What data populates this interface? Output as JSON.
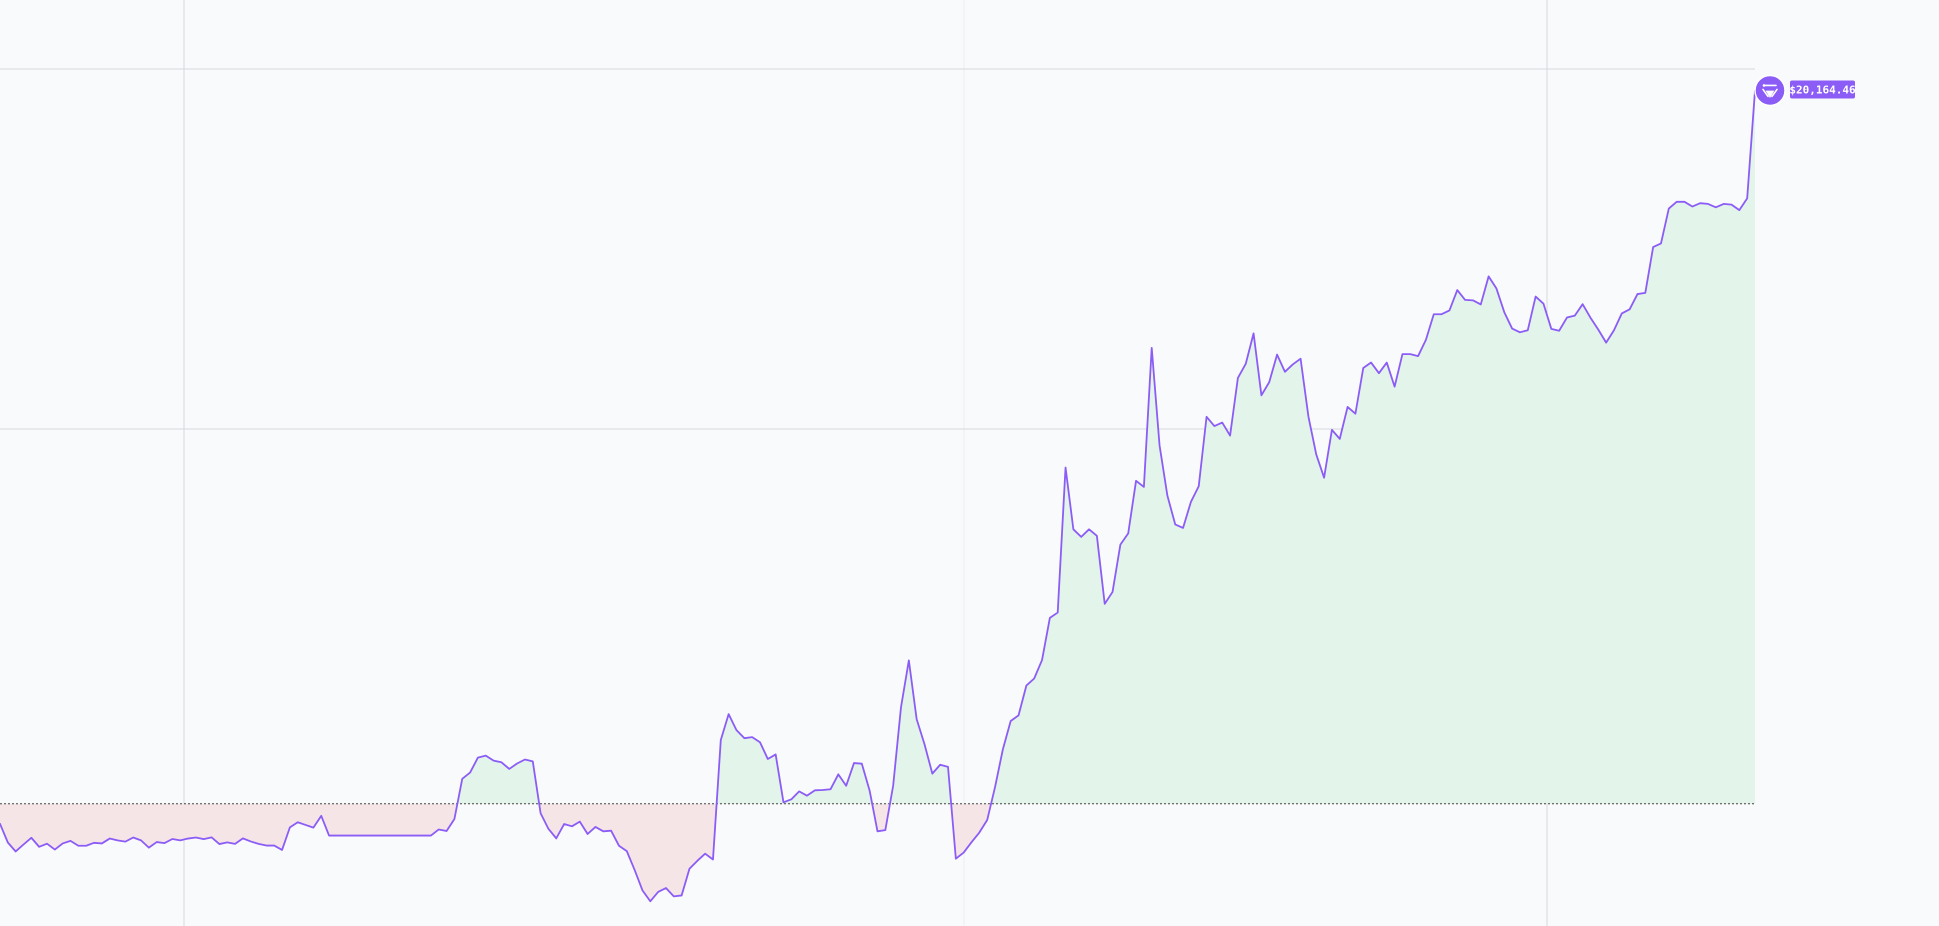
{
  "chart_data": {
    "type": "area",
    "baseline_style": "dotted",
    "grid": true,
    "ylim": [
      10600,
      21200
    ],
    "baseline": 12000,
    "colors": {
      "line": "#8b5cf6",
      "above_fill": "#e3f4ea",
      "below_fill": "#f6e5e7",
      "grid": "#d8d8de",
      "baseline": "#444444",
      "badge": "#8b5cf6",
      "badge_text": "#ffffff"
    },
    "marker": {
      "icon": "token-logo-icon",
      "label": "$20,164.46",
      "value": 20164.46
    },
    "series": [
      {
        "values": [
          11770,
          11556,
          11453,
          11533,
          11610,
          11506,
          11542,
          11475,
          11545,
          11574,
          11519,
          11519,
          11552,
          11545,
          11601,
          11580,
          11566,
          11613,
          11580,
          11497,
          11561,
          11549,
          11596,
          11580,
          11601,
          11613,
          11594,
          11615,
          11538,
          11557,
          11540,
          11603,
          11568,
          11540,
          11521,
          11521,
          11471,
          11729,
          11788,
          11757,
          11726,
          11861,
          11635,
          11635,
          11635,
          11635,
          11635,
          11635,
          11635,
          11635,
          11635,
          11635,
          11635,
          11635,
          11635,
          11635,
          11705,
          11687,
          11825,
          12285,
          12356,
          12528,
          12550,
          12493,
          12474,
          12398,
          12460,
          12506,
          12485,
          11891,
          11712,
          11603,
          11767,
          11741,
          11795,
          11653,
          11734,
          11684,
          11691,
          11519,
          11457,
          11242,
          11008,
          10883,
          10990,
          11035,
          10939,
          10950,
          11255,
          11346,
          11428,
          11361,
          12729,
          13025,
          12842,
          12750,
          12762,
          12704,
          12512,
          12564,
          12016,
          12050,
          12141,
          12092,
          12153,
          12157,
          12165,
          12336,
          12205,
          12465,
          12458,
          12148,
          11684,
          11698,
          12207,
          13104,
          13640,
          12967,
          12681,
          12344,
          12446,
          12421,
          11370,
          11441,
          11559,
          11670,
          11813,
          12189,
          12622,
          12947,
          13011,
          13352,
          13433,
          13644,
          14127,
          14188,
          15848,
          15141,
          15054,
          15141,
          15066,
          14288,
          14424,
          14966,
          15094,
          15696,
          15626,
          17218,
          16102,
          15526,
          15197,
          15157,
          15454,
          15634,
          16429,
          16323,
          16363,
          16214,
          16874,
          17035,
          17384,
          16675,
          16826,
          17141,
          16944,
          17028,
          17094,
          16432,
          15998,
          15732,
          16279,
          16176,
          16542,
          16465,
          16987,
          17050,
          16928,
          17050,
          16774,
          17146,
          17146,
          17124,
          17311,
          17603,
          17603,
          17646,
          17880,
          17767,
          17762,
          17715,
          18036,
          17897,
          17626,
          17439,
          17396,
          17420,
          17805,
          17724,
          17436,
          17414,
          17565,
          17587,
          17718,
          17563,
          17427,
          17278,
          17420,
          17612,
          17659,
          17834,
          17848,
          18372,
          18413,
          18812,
          18890,
          18890,
          18836,
          18874,
          18866,
          18827,
          18866,
          18858,
          18795,
          18929,
          20164
        ]
      }
    ]
  }
}
